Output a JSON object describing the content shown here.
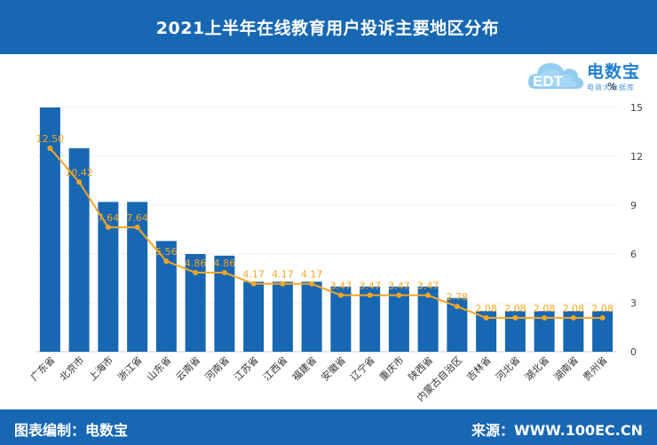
{
  "header": {
    "title": "2021上半年在线教育用户投诉主要地区分布"
  },
  "logo": {
    "name": "电数宝",
    "tagline": "电商大数据库",
    "mark": "EDT"
  },
  "footer": {
    "compiled_by": "图表编制：电数宝",
    "source": "来源：WWW.100EC.CN"
  },
  "colors": {
    "bar": "#1767b3",
    "line": "#f5a623",
    "label": "#f5a623",
    "header": "#1767b3"
  },
  "chart_data": {
    "type": "bar",
    "title": "2021上半年在线教育用户投诉主要地区分布",
    "categories": [
      "广东省",
      "北京市",
      "上海市",
      "浙江省",
      "山东省",
      "云南省",
      "河南省",
      "江苏省",
      "江西省",
      "福建省",
      "安徽省",
      "辽宁省",
      "重庆市",
      "陕西省",
      "内蒙古自治区",
      "吉林省",
      "河北省",
      "湖北省",
      "湖南省",
      "贵州省"
    ],
    "series": [
      {
        "type": "bar",
        "values": [
          15.0,
          12.5,
          9.2,
          9.2,
          6.8,
          6.0,
          5.9,
          4.3,
          4.3,
          4.3,
          4.0,
          4.0,
          4.0,
          4.0,
          3.3,
          2.5,
          2.5,
          2.5,
          2.5,
          2.5
        ]
      },
      {
        "type": "line",
        "values": [
          12.5,
          10.42,
          7.64,
          7.64,
          5.56,
          4.86,
          4.86,
          4.17,
          4.17,
          4.17,
          3.47,
          3.47,
          3.47,
          3.47,
          2.78,
          2.08,
          2.08,
          2.08,
          2.08,
          2.08
        ],
        "data_labels": [
          "12.50",
          "10.42",
          "7.64",
          "7.64",
          "5.56",
          "4.86",
          "4.86",
          "4.17",
          "4.17",
          "4.17",
          "3.47",
          "3.47",
          "3.47",
          "3.47",
          "2.78",
          "2.08",
          "2.08",
          "2.08",
          "2.08",
          "2.08"
        ]
      }
    ],
    "ylim": [
      0,
      15
    ],
    "yticks": [
      0,
      3,
      6,
      9,
      12,
      15
    ],
    "ytick_labels": [
      "0",
      "3",
      "6",
      "9",
      "12",
      "15"
    ],
    "ylabel": "%",
    "grid": true,
    "y_axis_side": "right"
  }
}
